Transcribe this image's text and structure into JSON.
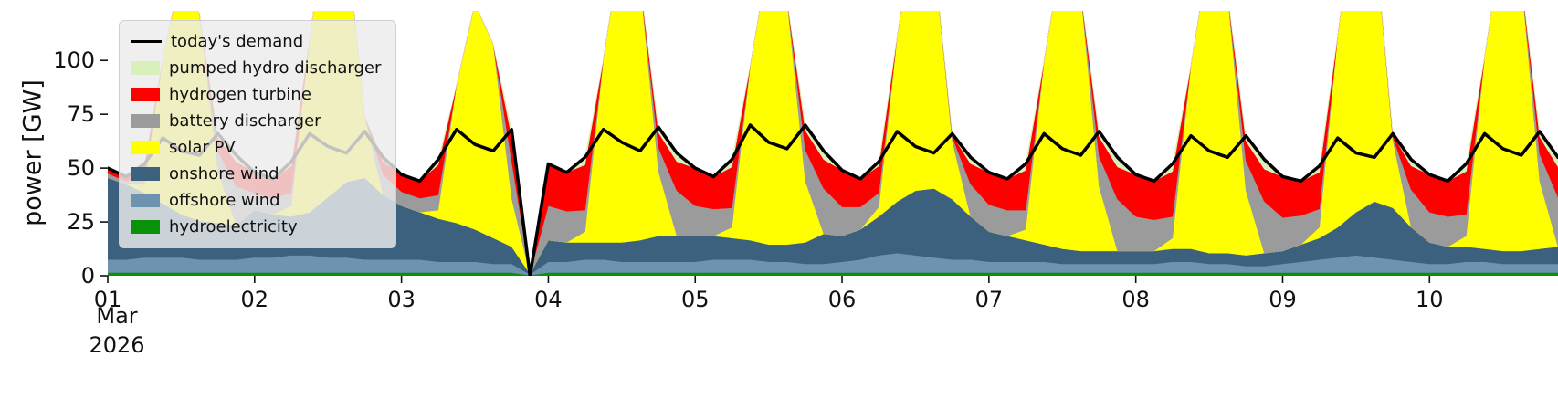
{
  "chart_data": {
    "type": "area",
    "title": "",
    "ylabel": "power [GW]",
    "xlabel_lines": [
      "Mar",
      "2026"
    ],
    "ylim": [
      0,
      123
    ],
    "yticks": [
      0,
      25,
      50,
      75,
      100
    ],
    "xticks": [
      0,
      1,
      2,
      3,
      4,
      5,
      6,
      7,
      8,
      9
    ],
    "xtick_labels": [
      "01",
      "02",
      "03",
      "04",
      "05",
      "06",
      "07",
      "08",
      "09",
      "10"
    ],
    "x": {
      "start": 0,
      "step": 0.125,
      "count": 80,
      "end": 9.875,
      "unit": "days since 2026-03-01"
    },
    "grid": false,
    "legend_position": "upper-left",
    "stack_order": [
      "hydroelectricity",
      "offshore wind",
      "onshore wind",
      "solar PV",
      "battery discharger",
      "hydrogen turbine",
      "pumped hydro discharger"
    ],
    "series": [
      {
        "name": "today's demand",
        "type": "line",
        "color": "#000000",
        "values": [
          50,
          46,
          52,
          64,
          58,
          56,
          66,
          56,
          48,
          45,
          53,
          66,
          60,
          57,
          67,
          55,
          47,
          44,
          54,
          68,
          61,
          58,
          68,
          0,
          52,
          48,
          55,
          68,
          62,
          58,
          69,
          57,
          50,
          46,
          54,
          70,
          62,
          59,
          70,
          58,
          49,
          45,
          53,
          67,
          60,
          57,
          66,
          55,
          48,
          45,
          52,
          66,
          59,
          56,
          67,
          55,
          47,
          44,
          52,
          65,
          58,
          55,
          65,
          54,
          46,
          44,
          51,
          64,
          57,
          55,
          66,
          54,
          47,
          44,
          52,
          66,
          59,
          56,
          67,
          55
        ]
      },
      {
        "name": "pumped hydro discharger",
        "type": "area",
        "color": "#d9f0bd",
        "values": [
          0,
          0,
          0.5,
          0,
          0,
          0,
          2,
          3,
          0,
          0,
          2,
          0,
          0,
          0,
          0,
          2,
          0,
          0,
          2.5,
          0,
          0,
          0,
          3.5,
          0,
          0,
          0,
          3.5,
          0,
          0,
          0,
          2.5,
          4,
          0,
          0,
          3.5,
          0,
          0,
          0,
          2.5,
          4,
          0,
          0,
          2,
          0,
          0,
          0,
          0.5,
          3,
          0,
          0,
          3,
          0,
          0,
          0,
          2.5,
          4.5,
          0,
          0,
          3.5,
          0,
          0,
          0,
          2.5,
          4.5,
          0,
          0,
          3,
          0,
          0,
          0,
          0.5,
          3,
          0,
          0,
          3.5,
          0,
          0,
          0,
          2.5,
          4.5
        ]
      },
      {
        "name": "hydrogen turbine",
        "type": "area",
        "color": "#ff0000",
        "values": [
          2.5,
          2,
          6,
          0,
          0,
          0,
          6,
          11.5,
          9.5,
          9,
          12.5,
          0,
          0,
          0,
          0,
          6,
          8,
          8,
          14,
          0,
          0,
          0,
          11,
          0,
          19.5,
          18,
          21,
          0,
          0,
          0,
          7,
          13.5,
          17.5,
          15,
          19,
          0,
          0,
          0,
          9,
          13.5,
          17,
          13,
          12.5,
          0,
          0,
          0,
          1,
          9.5,
          15,
          14.5,
          18.5,
          0,
          0,
          0,
          9,
          15,
          19.5,
          18,
          21,
          0,
          0,
          0,
          9,
          15,
          19,
          16,
          17,
          0,
          0,
          0,
          1,
          11,
          17.5,
          16.5,
          20,
          0,
          0,
          0,
          8,
          14
        ]
      },
      {
        "name": "battery discharger",
        "type": "area",
        "color": "#9b9b9b",
        "values": [
          2,
          1.5,
          3,
          0,
          0,
          0,
          9.5,
          18,
          8,
          7.5,
          6,
          0,
          0,
          0,
          0,
          9.5,
          6.5,
          6.5,
          7,
          0,
          0,
          0,
          17.5,
          0,
          16,
          14.5,
          10,
          0,
          0,
          0,
          11,
          21,
          14,
          12.5,
          9,
          0,
          0,
          0,
          14.5,
          21,
          13.5,
          10.5,
          6.5,
          0,
          0,
          0,
          2,
          15,
          12.5,
          12,
          9,
          0,
          0,
          0,
          14,
          24,
          16,
          14.5,
          10,
          0,
          0,
          0,
          14,
          24,
          15.5,
          13.5,
          8.5,
          0,
          0,
          0,
          1.5,
          17.5,
          14,
          14,
          10,
          0,
          0,
          0,
          12.5,
          23
        ]
      },
      {
        "name": "solar PV",
        "type": "area",
        "color": "#ffff00",
        "values": [
          0,
          0,
          4,
          68,
          112,
          96,
          24,
          0,
          0,
          0,
          5,
          81,
          133,
          114,
          28.5,
          0,
          0,
          0,
          4,
          64,
          105,
          90,
          22.5,
          0,
          0,
          0,
          5,
          85,
          140,
          120,
          30,
          0,
          0,
          0,
          5,
          81,
          133,
          114,
          28.5,
          0,
          0,
          0,
          4.5,
          76.5,
          126,
          108,
          27,
          0,
          0,
          0,
          5,
          85,
          140,
          120,
          30,
          0,
          0,
          0,
          5,
          85,
          140,
          120,
          30,
          0,
          0,
          0,
          5,
          89,
          147,
          126,
          31.5,
          0,
          0,
          0,
          5,
          89,
          147,
          126,
          31.5,
          0
        ]
      },
      {
        "name": "onshore wind",
        "type": "area",
        "color": "#3b617f",
        "values": [
          38,
          35,
          30,
          25,
          20,
          18,
          17,
          16,
          22,
          20,
          18,
          20,
          28,
          35,
          38,
          30,
          25,
          22,
          20,
          18,
          15,
          12,
          8,
          0.2,
          10,
          9,
          8,
          8,
          9,
          10,
          12,
          12,
          12,
          11,
          10,
          9,
          8,
          8,
          10,
          14,
          12,
          14,
          18,
          24,
          30,
          32,
          28,
          20,
          14,
          12,
          10,
          8,
          7,
          6,
          6,
          6,
          6,
          6,
          6,
          6,
          5,
          5,
          5,
          6,
          6,
          8,
          10,
          14,
          20,
          26,
          24,
          16,
          10,
          8,
          7,
          6,
          6,
          6,
          7,
          8
        ]
      },
      {
        "name": "offshore wind",
        "type": "area",
        "color": "#6e93af",
        "values": [
          6,
          6,
          7,
          7,
          7,
          6,
          6,
          6,
          7,
          7,
          8,
          8,
          7,
          7,
          6,
          6,
          6,
          6,
          5,
          5,
          5,
          4,
          4,
          0.3,
          5,
          5,
          6,
          6,
          5,
          5,
          5,
          5,
          5,
          6,
          6,
          6,
          5,
          5,
          4,
          4,
          5,
          6,
          8,
          9,
          8,
          7,
          6,
          6,
          5,
          5,
          5,
          5,
          4,
          4,
          4,
          4,
          4,
          4,
          5,
          5,
          4,
          4,
          3,
          3,
          4,
          5,
          6,
          7,
          8,
          7,
          6,
          5,
          4,
          4,
          5,
          5,
          4,
          4,
          4,
          4
        ]
      },
      {
        "name": "hydroelectricity",
        "type": "area",
        "color": "#0a910a",
        "values": [
          1.5,
          1.5,
          1.5,
          1.5,
          1.5,
          1.5,
          1.5,
          1.5,
          1.5,
          1.5,
          1.5,
          1.5,
          1.5,
          1.5,
          1.5,
          1.5,
          1.5,
          1.5,
          1.5,
          1.5,
          1.5,
          1.5,
          1.5,
          0.3,
          1.5,
          1.5,
          1.5,
          1.5,
          1.5,
          1.5,
          1.5,
          1.5,
          1.5,
          1.5,
          1.5,
          1.5,
          1.5,
          1.5,
          1.5,
          1.5,
          1.5,
          1.5,
          1.5,
          1.5,
          1.5,
          1.5,
          1.5,
          1.5,
          1.5,
          1.5,
          1.5,
          1.5,
          1.5,
          1.5,
          1.5,
          1.5,
          1.5,
          1.5,
          1.5,
          1.5,
          1.5,
          1.5,
          1.5,
          1.5,
          1.5,
          1.5,
          1.5,
          1.5,
          1.5,
          1.5,
          1.5,
          1.5,
          1.5,
          1.5,
          1.5,
          1.5,
          1.5,
          1.5,
          1.5,
          1.5
        ]
      }
    ]
  }
}
